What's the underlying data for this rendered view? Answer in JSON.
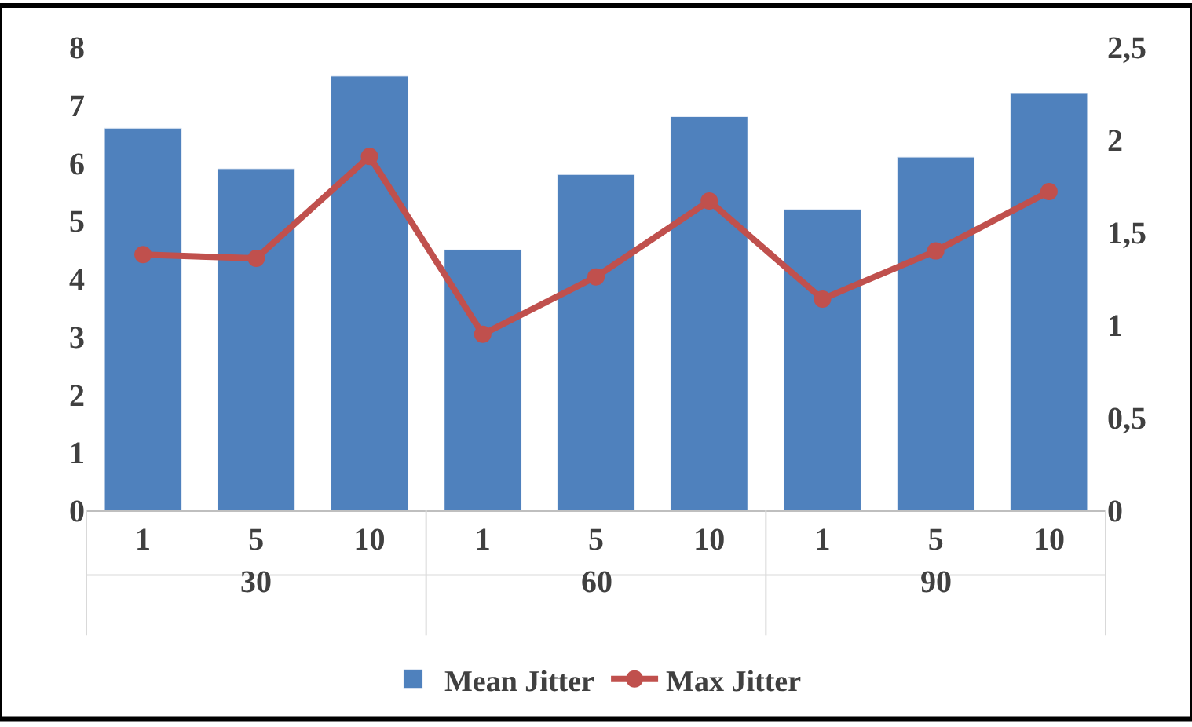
{
  "chart_data": {
    "type": "bar",
    "categories": [
      "1",
      "5",
      "10",
      "1",
      "5",
      "10",
      "1",
      "5",
      "10"
    ],
    "annotations": [
      "30",
      "60",
      "90"
    ],
    "series": [
      {
        "name": "Mean Jitter",
        "color": "#4f81bd",
        "values": [
          6.6,
          5.9,
          7.5,
          4.5,
          5.8,
          6.8,
          5.2,
          6.1,
          7.2
        ]
      },
      {
        "name": "Max Jitter",
        "type": "line",
        "axis": "y2",
        "color": "#c0504d",
        "marker": "circle",
        "values": [
          1.38,
          1.36,
          1.91,
          0.95,
          1.26,
          1.67,
          1.14,
          1.4,
          1.72
        ]
      }
    ],
    "ylim": [
      0,
      8
    ],
    "yticks": [
      0,
      1,
      2,
      3,
      4,
      5,
      6,
      7,
      8
    ],
    "y2lim": [
      0,
      2.5
    ],
    "y2ticks": [
      0,
      {
        "value": 0.5,
        "label": "0,5"
      },
      1,
      {
        "value": 1.5,
        "label": "1,5"
      },
      2,
      {
        "value": 2.5,
        "label": "2,5"
      }
    ],
    "legend": "bottom"
  }
}
